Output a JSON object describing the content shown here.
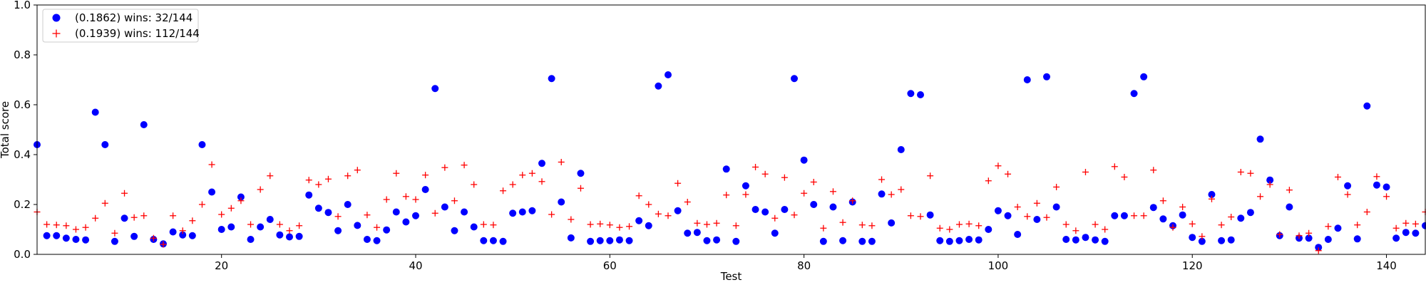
{
  "chart_data": {
    "type": "scatter",
    "xlabel": "Test",
    "ylabel": "Total score",
    "xlim": [
      1,
      144
    ],
    "ylim": [
      0.0,
      1.0
    ],
    "x_ticks": [
      20,
      40,
      60,
      80,
      100,
      120,
      140
    ],
    "y_ticks": [
      0.0,
      0.2,
      0.4,
      0.6,
      0.8,
      1.0
    ],
    "x_tick_labels": [
      "20",
      "40",
      "60",
      "80",
      "100",
      "120",
      "140"
    ],
    "y_tick_labels": [
      "0.0",
      "0.2",
      "0.4",
      "0.6",
      "0.8",
      "1.0"
    ],
    "grid": false,
    "legend_position": "upper-left",
    "series": [
      {
        "name": "(0.1862) wins: 32/144",
        "marker": "circle",
        "color": "#0000ff",
        "x": [
          1,
          2,
          3,
          4,
          5,
          6,
          7,
          8,
          9,
          10,
          11,
          12,
          13,
          14,
          15,
          16,
          17,
          18,
          19,
          20,
          21,
          22,
          23,
          24,
          25,
          26,
          27,
          28,
          29,
          30,
          31,
          32,
          33,
          34,
          35,
          36,
          37,
          38,
          39,
          40,
          41,
          42,
          43,
          44,
          45,
          46,
          47,
          48,
          49,
          50,
          51,
          52,
          53,
          54,
          55,
          56,
          57,
          58,
          59,
          60,
          61,
          62,
          63,
          64,
          65,
          66,
          67,
          68,
          69,
          70,
          71,
          72,
          73,
          74,
          75,
          76,
          77,
          78,
          79,
          80,
          81,
          82,
          83,
          84,
          85,
          86,
          87,
          88,
          89,
          90,
          91,
          92,
          93,
          94,
          95,
          96,
          97,
          98,
          99,
          100,
          101,
          102,
          103,
          104,
          105,
          106,
          107,
          108,
          109,
          110,
          111,
          112,
          113,
          114,
          115,
          116,
          117,
          118,
          119,
          120,
          121,
          122,
          123,
          124,
          125,
          126,
          127,
          128,
          129,
          130,
          131,
          132,
          133,
          134,
          135,
          136,
          137,
          138,
          139,
          140,
          141,
          142,
          143,
          144
        ],
        "values": [
          0.44,
          0.075,
          0.075,
          0.065,
          0.06,
          0.058,
          0.57,
          0.44,
          0.052,
          0.145,
          0.072,
          0.52,
          0.06,
          0.042,
          0.09,
          0.078,
          0.075,
          0.44,
          0.25,
          0.1,
          0.11,
          0.23,
          0.06,
          0.11,
          0.14,
          0.078,
          0.07,
          0.072,
          0.238,
          0.185,
          0.168,
          0.095,
          0.2,
          0.116,
          0.06,
          0.055,
          0.098,
          0.17,
          0.13,
          0.155,
          0.26,
          0.665,
          0.19,
          0.095,
          0.17,
          0.11,
          0.055,
          0.055,
          0.052,
          0.165,
          0.17,
          0.175,
          0.365,
          0.705,
          0.21,
          0.066,
          0.325,
          0.052,
          0.055,
          0.055,
          0.058,
          0.055,
          0.135,
          0.115,
          0.675,
          0.72,
          0.175,
          0.085,
          0.088,
          0.055,
          0.058,
          0.342,
          0.052,
          0.275,
          0.18,
          0.17,
          0.085,
          0.18,
          0.705,
          0.378,
          0.2,
          0.052,
          0.19,
          0.055,
          0.21,
          0.052,
          0.052,
          0.242,
          0.126,
          0.42,
          0.645,
          0.64,
          0.158,
          0.055,
          0.052,
          0.055,
          0.06,
          0.058,
          0.1,
          0.175,
          0.155,
          0.08,
          0.7,
          0.14,
          0.712,
          0.19,
          0.06,
          0.058,
          0.068,
          0.058,
          0.052,
          0.155,
          0.155,
          0.645,
          0.712,
          0.188,
          0.142,
          0.115,
          0.158,
          0.068,
          0.052,
          0.24,
          0.055,
          0.058,
          0.145,
          0.168,
          0.462,
          0.298,
          0.075,
          0.19,
          0.065,
          0.065,
          0.028,
          0.06,
          0.105,
          0.275,
          0.062,
          0.595,
          0.278,
          0.27,
          0.065,
          0.088,
          0.085,
          0.115
        ]
      },
      {
        "name": "(0.1939) wins: 112/144",
        "marker": "plus",
        "color": "#ff0000",
        "x": [
          1,
          2,
          3,
          4,
          5,
          6,
          7,
          8,
          9,
          10,
          11,
          12,
          13,
          14,
          15,
          16,
          17,
          18,
          19,
          20,
          21,
          22,
          23,
          24,
          25,
          26,
          27,
          28,
          29,
          30,
          31,
          32,
          33,
          34,
          35,
          36,
          37,
          38,
          39,
          40,
          41,
          42,
          43,
          44,
          45,
          46,
          47,
          48,
          49,
          50,
          51,
          52,
          53,
          54,
          55,
          56,
          57,
          58,
          59,
          60,
          61,
          62,
          63,
          64,
          65,
          66,
          67,
          68,
          69,
          70,
          71,
          72,
          73,
          74,
          75,
          76,
          77,
          78,
          79,
          80,
          81,
          82,
          83,
          84,
          85,
          86,
          87,
          88,
          89,
          90,
          91,
          92,
          93,
          94,
          95,
          96,
          97,
          98,
          99,
          100,
          101,
          102,
          103,
          104,
          105,
          106,
          107,
          108,
          109,
          110,
          111,
          112,
          113,
          114,
          115,
          116,
          117,
          118,
          119,
          120,
          121,
          122,
          123,
          124,
          125,
          126,
          127,
          128,
          129,
          130,
          131,
          132,
          133,
          134,
          135,
          136,
          137,
          138,
          139,
          140,
          141,
          142,
          143,
          144
        ],
        "values": [
          0.17,
          0.12,
          0.118,
          0.115,
          0.1,
          0.108,
          0.145,
          0.205,
          0.085,
          0.245,
          0.148,
          0.155,
          0.065,
          0.04,
          0.155,
          0.095,
          0.135,
          0.2,
          0.36,
          0.16,
          0.185,
          0.215,
          0.12,
          0.26,
          0.315,
          0.12,
          0.095,
          0.115,
          0.298,
          0.28,
          0.302,
          0.152,
          0.315,
          0.338,
          0.158,
          0.108,
          0.22,
          0.325,
          0.232,
          0.22,
          0.318,
          0.165,
          0.348,
          0.215,
          0.358,
          0.28,
          0.12,
          0.118,
          0.255,
          0.28,
          0.318,
          0.325,
          0.292,
          0.16,
          0.37,
          0.14,
          0.265,
          0.12,
          0.122,
          0.118,
          0.108,
          0.112,
          0.235,
          0.2,
          0.162,
          0.155,
          0.285,
          0.21,
          0.125,
          0.12,
          0.125,
          0.238,
          0.115,
          0.24,
          0.35,
          0.322,
          0.145,
          0.308,
          0.158,
          0.245,
          0.29,
          0.105,
          0.252,
          0.128,
          0.215,
          0.118,
          0.115,
          0.3,
          0.24,
          0.26,
          0.155,
          0.152,
          0.315,
          0.105,
          0.1,
          0.12,
          0.122,
          0.115,
          0.295,
          0.355,
          0.322,
          0.19,
          0.152,
          0.205,
          0.148,
          0.27,
          0.12,
          0.095,
          0.33,
          0.12,
          0.1,
          0.352,
          0.31,
          0.155,
          0.155,
          0.338,
          0.215,
          0.108,
          0.19,
          0.122,
          0.072,
          0.222,
          0.118,
          0.15,
          0.33,
          0.325,
          0.232,
          0.28,
          0.08,
          0.258,
          0.075,
          0.085,
          0.015,
          0.112,
          0.31,
          0.24,
          0.118,
          0.17,
          0.312,
          0.232,
          0.105,
          0.125,
          0.122,
          0.17
        ]
      }
    ]
  }
}
